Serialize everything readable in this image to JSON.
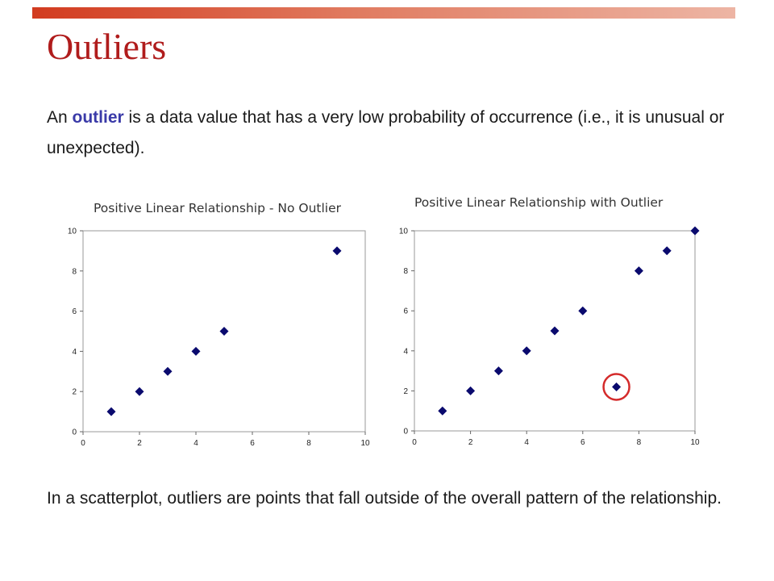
{
  "slide": {
    "title": "Outliers",
    "intro_prefix": "An ",
    "intro_keyword": "outlier",
    "intro_rest": " is a data value that has a very low probability of occurrence (i.e., it is unusual or unexpected).",
    "conclusion": "In a scatterplot, outliers are points that fall outside of the overall pattern of the relationship."
  },
  "colors": {
    "title": "#b01c1c",
    "keyword": "#3a3aa8",
    "marker": "#0a0a6e",
    "highlight_circle": "#d42a2a",
    "plot_border": "#9a9a9a"
  },
  "chart_data": [
    {
      "type": "scatter",
      "title": "Positive Linear Relationship - No Outlier",
      "xlabel": "",
      "ylabel": "",
      "xlim": [
        0,
        10
      ],
      "ylim": [
        0,
        10
      ],
      "xticks": [
        0,
        2,
        4,
        6,
        8,
        10
      ],
      "yticks": [
        0,
        2,
        4,
        6,
        8,
        10
      ],
      "grid": false,
      "marker": "diamond",
      "series": [
        {
          "x": [
            1,
            2,
            3,
            4,
            5,
            9
          ],
          "y": [
            1,
            2,
            3,
            4,
            5,
            9
          ]
        }
      ]
    },
    {
      "type": "scatter",
      "title": "Positive Linear Relationship with Outlier",
      "xlabel": "",
      "ylabel": "",
      "xlim": [
        0,
        10
      ],
      "ylim": [
        0,
        10
      ],
      "xticks": [
        0,
        2,
        4,
        6,
        8,
        10
      ],
      "yticks": [
        0,
        2,
        4,
        6,
        8,
        10
      ],
      "grid": false,
      "marker": "diamond",
      "series": [
        {
          "x": [
            1,
            2,
            3,
            4,
            5,
            6,
            7.2,
            8,
            9,
            10
          ],
          "y": [
            1,
            2,
            3,
            4,
            5,
            6,
            2.2,
            8,
            9,
            10
          ]
        }
      ],
      "highlight": {
        "x": 7.2,
        "y": 2.2
      }
    }
  ]
}
